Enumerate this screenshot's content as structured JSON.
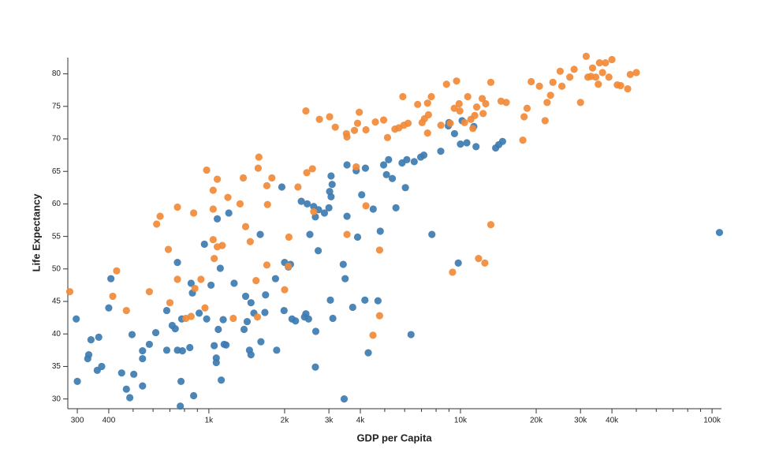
{
  "chart_data": {
    "type": "scatter",
    "x_label": "GDP per Capita",
    "y_label": "Life Expectancy",
    "log_x": true,
    "xlim": [
      275,
      109000
    ],
    "ylim": [
      28.5,
      82.5
    ],
    "xticks": [
      300,
      400,
      {
        "value": 1000,
        "label": "1k"
      },
      {
        "value": 2000,
        "label": "2k"
      },
      {
        "value": 3000,
        "label": "3k"
      },
      {
        "value": 4000,
        "label": "4k"
      },
      {
        "value": 10000,
        "label": "10k"
      },
      {
        "value": 20000,
        "label": "20k"
      },
      {
        "value": 30000,
        "label": "30k"
      },
      {
        "value": 40000,
        "label": "40k"
      },
      {
        "value": 100000,
        "label": "100k"
      }
    ],
    "xminorticks": [
      500,
      600,
      700,
      800,
      900,
      5000,
      6000,
      7000,
      8000,
      9000,
      50000,
      60000,
      70000,
      80000,
      90000
    ],
    "yticks": [
      30,
      35,
      40,
      45,
      50,
      55,
      60,
      65,
      70,
      75,
      80
    ],
    "series": [
      {
        "color": "#3d7cb1",
        "x": [
          297,
          300,
          330,
          333,
          340,
          360,
          365,
          375,
          400,
          408,
          450,
          470,
          485,
          495,
          503,
          545,
          545,
          545,
          580,
          615,
          680,
          680,
          715,
          735,
          750,
          750,
          770,
          775,
          780,
          785,
          840,
          850,
          860,
          870,
          915,
          960,
          980,
          1020,
          1050,
          1070,
          1070,
          1090,
          1110,
          1120,
          1140,
          1150,
          1170,
          1200,
          1080,
          1260,
          1380,
          1400,
          1420,
          1450,
          1470,
          1470,
          1510,
          1600,
          1610,
          1670,
          1680,
          1860,
          1840,
          1950,
          1990,
          2000,
          2070,
          2110,
          2140,
          2210,
          2330,
          2400,
          2430,
          2460,
          2490,
          2520,
          2610,
          2650,
          2660,
          2650,
          2720,
          2730,
          2880,
          3000,
          3020,
          3040,
          3060,
          3060,
          3090,
          3110,
          3420,
          3450,
          3480,
          3540,
          3540,
          3730,
          3850,
          3900,
          4050,
          4170,
          4190,
          4300,
          4500,
          4700,
          4800,
          4950,
          5080,
          5180,
          5360,
          5540,
          5860,
          6040,
          6120,
          6360,
          6550,
          6950,
          7150,
          7700,
          8350,
          8950,
          9000,
          9470,
          9800,
          10000,
          10150,
          10600,
          11300,
          11530,
          13800,
          14200,
          14700,
          107000
        ],
        "values": [
          42.3,
          32.7,
          36.2,
          36.8,
          39.1,
          34.4,
          39.5,
          35,
          44,
          48.5,
          34,
          31.5,
          30.2,
          39.9,
          33.8,
          37.4,
          36.2,
          32,
          38.4,
          40.2,
          43.6,
          37.5,
          41.3,
          40.8,
          37.5,
          51,
          28.9,
          32.7,
          42.3,
          37.4,
          37.9,
          47.8,
          46.3,
          30.5,
          43.2,
          53.8,
          42.3,
          47.5,
          38.2,
          36.3,
          35.6,
          40.7,
          50.1,
          32.9,
          42.2,
          38.4,
          38.3,
          58.6,
          57.7,
          47.8,
          40.7,
          45.8,
          41.9,
          37.5,
          44.8,
          36.8,
          43.2,
          55.3,
          38.8,
          43.3,
          46,
          37.5,
          48.5,
          62.6,
          43.6,
          51,
          50.3,
          50.7,
          42.3,
          42,
          60.4,
          42.6,
          43.1,
          60,
          42.3,
          55.3,
          59.6,
          58,
          40.4,
          34.9,
          52.8,
          59.1,
          58.6,
          59.4,
          61.9,
          45.2,
          61.1,
          64.3,
          63,
          42.4,
          50.7,
          30,
          48.5,
          58.1,
          66,
          44.1,
          65.1,
          54.9,
          61.4,
          45.2,
          65.5,
          37.1,
          59.2,
          45.1,
          55.8,
          66,
          64.5,
          66.8,
          63.9,
          59.4,
          66.3,
          62.5,
          66.8,
          39.9,
          66.5,
          67.2,
          67.5,
          55.3,
          68.1,
          72,
          72.5,
          70.8,
          50.9,
          69.2,
          72.8,
          69.4,
          71.9,
          68.8,
          68.6,
          69.1,
          69.6,
          55.6
        ]
      },
      {
        "color": "#f28a37",
        "x": [
          280,
          430,
          415,
          470,
          580,
          640,
          620,
          690,
          700,
          750,
          750,
          810,
          850,
          870,
          880,
          930,
          965,
          980,
          1040,
          1040,
          1040,
          1050,
          1080,
          1080,
          1130,
          1190,
          1250,
          1330,
          1370,
          1400,
          1460,
          1540,
          1560,
          1570,
          1580,
          1700,
          1700,
          1710,
          1780,
          2000,
          2070,
          2080,
          2260,
          2450,
          2430,
          2580,
          2610,
          2750,
          3020,
          3180,
          3520,
          3540,
          3540,
          3790,
          3900,
          3960,
          3850,
          4210,
          4210,
          4590,
          4950,
          4490,
          4770,
          4770,
          5130,
          5490,
          5690,
          5900,
          5960,
          6190,
          6760,
          7040,
          7190,
          7400,
          7400,
          7460,
          7660,
          8360,
          8800,
          9100,
          9300,
          9450,
          9650,
          9880,
          9940,
          10380,
          10690,
          11000,
          11200,
          11400,
          11600,
          11800,
          12200,
          12300,
          12500,
          12600,
          13200,
          13200,
          14500,
          15200,
          17700,
          17900,
          18400,
          19100,
          20600,
          21700,
          22100,
          22800,
          23300,
          24900,
          25300,
          27200,
          28300,
          30000,
          31600,
          32100,
          33000,
          33500,
          34500,
          35300,
          35700,
          36700,
          37700,
          38900,
          40000,
          42000,
          43300,
          46200,
          47300,
          50000
        ],
        "values": [
          46.5,
          49.7,
          45.8,
          43.6,
          46.5,
          58.1,
          56.9,
          53,
          44.8,
          59.5,
          48.4,
          42.4,
          42.7,
          58.6,
          47,
          48.4,
          44,
          65.2,
          62.1,
          59.2,
          54.5,
          51.6,
          63.8,
          53.4,
          53.6,
          61,
          42.4,
          60,
          64,
          56.5,
          54.2,
          48.2,
          42.6,
          65.5,
          67.2,
          50.6,
          62.8,
          59.9,
          64,
          46.8,
          50.4,
          54.9,
          62.6,
          64.8,
          74.3,
          65.4,
          58.8,
          73,
          73.4,
          71.8,
          70.8,
          70.3,
          55.3,
          71.3,
          72.4,
          74.1,
          65.7,
          59.7,
          71.4,
          72.6,
          72.9,
          39.8,
          42.8,
          52.9,
          70.2,
          71.5,
          71.7,
          76.5,
          72.1,
          72.4,
          75.3,
          72.5,
          73.1,
          75.5,
          70.9,
          73.7,
          76.5,
          72.1,
          78.4,
          72.4,
          49.5,
          74.7,
          78.9,
          75.4,
          74.3,
          72.5,
          76.5,
          73,
          71.6,
          73.6,
          74.9,
          51.6,
          76.2,
          73.9,
          50.9,
          75.4,
          56.8,
          78.7,
          75.8,
          75.6,
          69.8,
          73.4,
          74.7,
          78.8,
          78.1,
          72.8,
          75.6,
          76.7,
          78.7,
          80.4,
          78.1,
          79.5,
          80.7,
          75.6,
          82.7,
          79.5,
          79.6,
          80.9,
          79.5,
          78.4,
          81.7,
          80.2,
          81.7,
          79.5,
          82.2,
          78.3,
          78.2,
          77.7,
          79.9,
          80.2
        ]
      }
    ]
  }
}
